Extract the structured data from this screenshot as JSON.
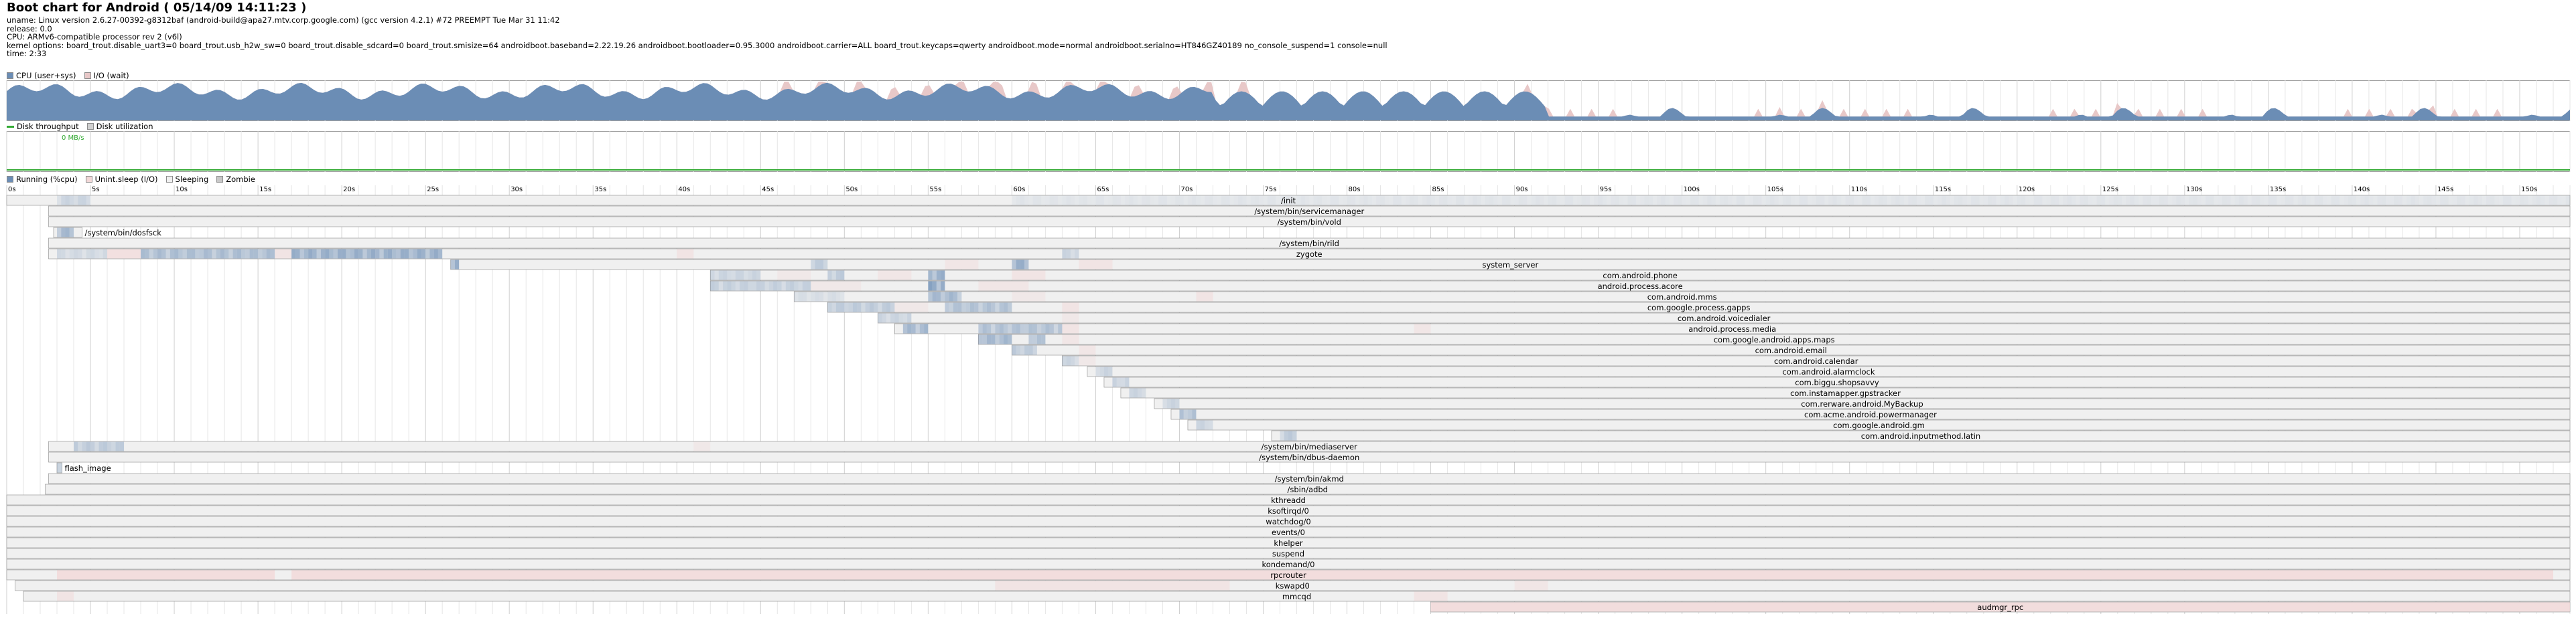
{
  "title": "Boot chart for Android ( 05/14/09 14:11:23 )",
  "header": {
    "uname": "uname: Linux version 2.6.27-00392-g8312baf (android-build@apa27.mtv.corp.google.com) (gcc version 4.2.1) #72 PREEMPT Tue Mar 31 11:42",
    "release": "release: 0.0",
    "cpu": "CPU: ARMv6-compatible processor rev 2 (v6l)",
    "kernel_options": "kernel options: board_trout.disable_uart3=0 board_trout.usb_h2w_sw=0 board_trout.disable_sdcard=0 board_trout.smisize=64  androidboot.baseband=2.22.19.26 androidboot.bootloader=0.95.3000 androidboot.carrier=ALL board_trout.keycaps=qwerty androidboot.mode=normal androidboot.serialno=HT846GZ40189 no_console_suspend=1 console=null",
    "time": "time: 2:33"
  },
  "colors": {
    "cpu": "#6b8db5",
    "io": "#e8c8c8",
    "disk_throughput": "#33aa33",
    "disk_util": "#d0d0d0",
    "running": "#6b8db5",
    "uninterruptible": "#f2d8d8",
    "sleeping": "#f0f0f0",
    "zombie": "#c8c8c8",
    "grid": "#e6e6e6",
    "border": "#a0a0a0"
  },
  "cpu_legend": {
    "cpu_label": "CPU (user+sys)",
    "io_label": "I/O (wait)"
  },
  "disk_legend": {
    "throughput_label": "Disk throughput",
    "util_label": "Disk utilization",
    "max_throughput_label": "0 MB/s"
  },
  "process_legend": {
    "running_label": "Running (%cpu)",
    "uninterruptible_label": "Unint.sleep (I/O)",
    "sleeping_label": "Sleeping",
    "zombie_label": "Zombie"
  },
  "timeline": {
    "duration_s": 153,
    "tick_labels": [
      "0s",
      "5s",
      "10s",
      "15s",
      "20s",
      "25s",
      "30s",
      "35s",
      "40s",
      "45s",
      "50s",
      "55s",
      "60s",
      "65s",
      "70s",
      "75s",
      "80s",
      "85s",
      "90s",
      "95s",
      "100s",
      "105s",
      "110s",
      "115s",
      "120s",
      "125s",
      "130s",
      "135s",
      "140s",
      "145s",
      "150s"
    ]
  },
  "processes": [
    {
      "name": "/init",
      "start": 0,
      "end": 153,
      "label_at": "center",
      "cpu": [
        [
          3,
          5,
          0.3
        ],
        [
          60,
          153,
          0.12
        ]
      ],
      "io": []
    },
    {
      "name": "/system/bin/servicemanager",
      "start": 2.5,
      "end": 153,
      "label_at": "center",
      "cpu": [],
      "io": []
    },
    {
      "name": "/system/bin/vold",
      "start": 2.5,
      "end": 153,
      "label_at": "center",
      "cpu": [],
      "io": []
    },
    {
      "name": "/system/bin/dosfsck",
      "start": 2.8,
      "end": 4.5,
      "label_at": "after",
      "cpu": [
        [
          3,
          4,
          0.6
        ]
      ],
      "io": []
    },
    {
      "name": "/system/bin/rild",
      "start": 2.5,
      "end": 153,
      "label_at": "center",
      "cpu": [],
      "io": []
    },
    {
      "name": "zygote",
      "start": 2.5,
      "end": 153,
      "label_at": "center",
      "cpu": [
        [
          3,
          6,
          0.25
        ],
        [
          8,
          16,
          0.55
        ],
        [
          17,
          26,
          0.7
        ],
        [
          63,
          64,
          0.3
        ]
      ],
      "io": [
        [
          6,
          8,
          0.7
        ],
        [
          16,
          17,
          0.5
        ],
        [
          40,
          41,
          0.5
        ]
      ]
    },
    {
      "name": "system_server",
      "start": 26.5,
      "end": 153,
      "label_at": "center",
      "cpu": [
        [
          26.5,
          27,
          0.7
        ],
        [
          48,
          49,
          0.4
        ],
        [
          60,
          61,
          0.7
        ]
      ],
      "io": [
        [
          56,
          58,
          0.4
        ],
        [
          64,
          66,
          0.5
        ]
      ]
    },
    {
      "name": "com.android.phone",
      "start": 42,
      "end": 153,
      "label_at": "center",
      "cpu": [
        [
          42,
          45,
          0.3
        ],
        [
          49,
          50,
          0.4
        ],
        [
          55,
          56,
          0.7
        ]
      ],
      "io": [
        [
          46,
          48,
          0.3
        ],
        [
          52,
          54,
          0.4
        ],
        [
          60,
          62,
          0.5
        ]
      ]
    },
    {
      "name": "android.process.acore",
      "start": 42,
      "end": 153,
      "label_at": "center",
      "cpu": [
        [
          42,
          48,
          0.35
        ],
        [
          55,
          56,
          0.8
        ]
      ],
      "io": [
        [
          48,
          51,
          0.3
        ],
        [
          58,
          61,
          0.4
        ]
      ]
    },
    {
      "name": "com.android.mms",
      "start": 47,
      "end": 153,
      "label_at": "center",
      "cpu": [
        [
          47,
          50,
          0.2
        ],
        [
          55,
          57,
          0.6
        ]
      ],
      "io": [
        [
          60,
          62,
          0.3
        ],
        [
          71,
          72,
          0.5
        ]
      ]
    },
    {
      "name": "com.google.process.gapps",
      "start": 49,
      "end": 153,
      "label_at": "center",
      "cpu": [
        [
          49,
          53,
          0.4
        ],
        [
          56,
          60,
          0.5
        ]
      ],
      "io": [
        [
          53,
          55,
          0.3
        ],
        [
          63,
          64,
          0.5
        ]
      ]
    },
    {
      "name": "com.android.voicedialer",
      "start": 52,
      "end": 153,
      "label_at": "center",
      "cpu": [
        [
          52,
          54,
          0.3
        ]
      ],
      "io": [
        [
          63,
          64,
          0.3
        ]
      ]
    },
    {
      "name": "android.process.media",
      "start": 53,
      "end": 153,
      "label_at": "center",
      "cpu": [
        [
          53.5,
          55,
          0.6
        ],
        [
          58,
          63,
          0.5
        ]
      ],
      "io": [
        [
          63,
          64,
          0.5
        ],
        [
          84,
          85,
          0.4
        ]
      ]
    },
    {
      "name": "com.google.android.apps.maps",
      "start": 58,
      "end": 153,
      "label_at": "center",
      "cpu": [
        [
          58,
          60,
          0.6
        ],
        [
          61,
          62,
          0.5
        ]
      ],
      "io": [
        [
          63,
          64,
          0.4
        ]
      ]
    },
    {
      "name": "com.android.email",
      "start": 60,
      "end": 153,
      "label_at": "center",
      "cpu": [
        [
          60,
          61.5,
          0.4
        ]
      ],
      "io": [
        [
          64,
          65,
          0.4
        ]
      ]
    },
    {
      "name": "com.android.calendar",
      "start": 63,
      "end": 153,
      "label_at": "center",
      "cpu": [
        [
          63,
          64,
          0.3
        ]
      ],
      "io": [
        [
          64,
          65,
          0.3
        ]
      ]
    },
    {
      "name": "com.android.alarmclock",
      "start": 64.5,
      "end": 153,
      "label_at": "center",
      "cpu": [
        [
          65,
          66,
          0.3
        ]
      ],
      "io": []
    },
    {
      "name": "com.biggu.shopsavvy",
      "start": 65.5,
      "end": 153,
      "label_at": "center",
      "cpu": [
        [
          66,
          67,
          0.3
        ]
      ],
      "io": []
    },
    {
      "name": "com.instamapper.gpstracker",
      "start": 66.5,
      "end": 153,
      "label_at": "center",
      "cpu": [
        [
          67,
          68,
          0.3
        ]
      ],
      "io": []
    },
    {
      "name": "com.rerware.android.MyBackup",
      "start": 68.5,
      "end": 153,
      "label_at": "center",
      "cpu": [
        [
          69,
          70,
          0.3
        ]
      ],
      "io": []
    },
    {
      "name": "com.acme.android.powermanager",
      "start": 69.5,
      "end": 153,
      "label_at": "center",
      "cpu": [
        [
          70,
          71,
          0.5
        ]
      ],
      "io": []
    },
    {
      "name": "com.google.android.gm",
      "start": 70.5,
      "end": 153,
      "label_at": "center",
      "cpu": [
        [
          71,
          72,
          0.3
        ]
      ],
      "io": []
    },
    {
      "name": "com.android.inputmethod.latin",
      "start": 75.5,
      "end": 153,
      "label_at": "center",
      "cpu": [
        [
          76,
          77,
          0.4
        ]
      ],
      "io": []
    },
    {
      "name": "/system/bin/mediaserver",
      "start": 2.5,
      "end": 153,
      "label_at": "center",
      "cpu": [
        [
          4,
          7,
          0.4
        ]
      ],
      "io": [
        [
          41,
          42,
          0.3
        ]
      ]
    },
    {
      "name": "/system/bin/dbus-daemon",
      "start": 2.5,
      "end": 153,
      "label_at": "center",
      "cpu": [],
      "io": []
    },
    {
      "name": "flash_image",
      "start": 3,
      "end": 3.3,
      "label_at": "after",
      "cpu": [
        [
          3,
          3.3,
          0.5
        ]
      ],
      "io": []
    },
    {
      "name": "/system/bin/akmd",
      "start": 2.5,
      "end": 153,
      "label_at": "center",
      "cpu": [],
      "io": []
    },
    {
      "name": "/sbin/adbd",
      "start": 2.3,
      "end": 153,
      "label_at": "center",
      "cpu": [],
      "io": []
    },
    {
      "name": "kthreadd",
      "start": 0,
      "end": 153,
      "label_at": "center",
      "cpu": [],
      "io": []
    },
    {
      "name": "ksoftirqd/0",
      "start": 0,
      "end": 153,
      "label_at": "center",
      "cpu": [],
      "io": []
    },
    {
      "name": "watchdog/0",
      "start": 0,
      "end": 153,
      "label_at": "center",
      "cpu": [],
      "io": []
    },
    {
      "name": "events/0",
      "start": 0,
      "end": 153,
      "label_at": "center",
      "cpu": [],
      "io": []
    },
    {
      "name": "khelper",
      "start": 0,
      "end": 153,
      "label_at": "center",
      "cpu": [],
      "io": []
    },
    {
      "name": "suspend",
      "start": 0,
      "end": 153,
      "label_at": "center",
      "cpu": [],
      "io": []
    },
    {
      "name": "kondemand/0",
      "start": 0,
      "end": 153,
      "label_at": "center",
      "cpu": [],
      "io": []
    },
    {
      "name": "rpcrouter",
      "start": 0,
      "end": 153,
      "label_at": "center",
      "cpu": [],
      "io": [
        [
          3,
          16,
          0.8
        ],
        [
          17,
          152,
          0.8
        ]
      ]
    },
    {
      "name": "kswapd0",
      "start": 0.5,
      "end": 153,
      "label_at": "center",
      "cpu": [],
      "io": [
        [
          59,
          73,
          0.5
        ],
        [
          90,
          92,
          0.4
        ]
      ]
    },
    {
      "name": "mmcqd",
      "start": 1,
      "end": 153,
      "label_at": "center",
      "cpu": [],
      "io": [
        [
          3,
          4,
          0.5
        ],
        [
          84,
          86,
          0.5
        ]
      ]
    },
    {
      "name": "audmgr_rpc",
      "start": 85,
      "end": 153,
      "label_at": "center",
      "cpu": [],
      "io": [
        [
          85,
          153,
          0.8
        ]
      ]
    }
  ]
}
